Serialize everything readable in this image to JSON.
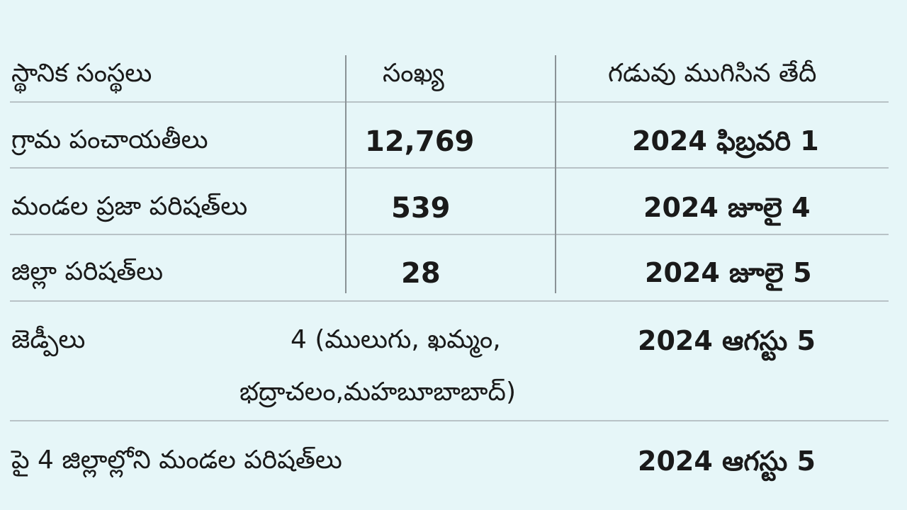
{
  "table": {
    "headers": [
      "స్థానిక సంస్థలు",
      "సంఖ్య",
      "గడువు ముగిసిన తేదీ"
    ],
    "rows": [
      {
        "body": "గ్రామ పంచాయతీలు",
        "count": "12,769",
        "date": "2024 ఫిబ్రవరి 1"
      },
      {
        "body": "మండల ప్రజా పరిషత్‌లు",
        "count": "539",
        "date": "2024 జూలై 4"
      },
      {
        "body": "జిల్లా పరిషత్‌లు",
        "count": "28",
        "date": "2024 జూలై 5"
      },
      {
        "body": "జెడ్పీలు",
        "count_line1": "4 (ములుగు, ఖమ్మం,",
        "count_line2": "భద్రాచలం,మహబూబాబాద్)",
        "date": "2024 ఆగస్టు 5"
      },
      {
        "body": "పై 4 జిల్లాల్లోని మండల పరిషత్‌లు",
        "date": "2024 ఆగస్టు 5"
      }
    ]
  }
}
